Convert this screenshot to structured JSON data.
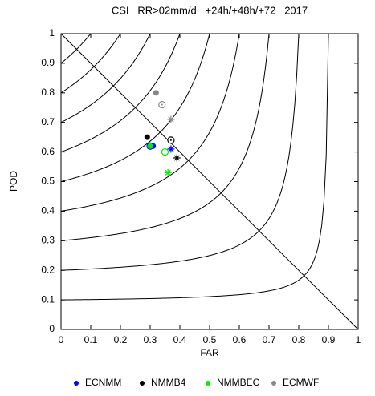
{
  "chart_data": {
    "type": "scatter",
    "title": "CSI   RR>02mm/d   +24h/+48h/+72   2017",
    "x_label": "FAR",
    "y_label": "POD",
    "xlim": [
      0,
      1
    ],
    "ylim": [
      0,
      1
    ],
    "xticks": [
      0,
      0.1,
      0.2,
      0.3,
      0.4,
      0.5,
      0.6,
      0.7,
      0.8,
      0.9,
      1
    ],
    "yticks": [
      0,
      0.1,
      0.2,
      0.3,
      0.4,
      0.5,
      0.6,
      0.7,
      0.8,
      0.9,
      1
    ],
    "csi_levels": [
      0.1,
      0.2,
      0.3,
      0.4,
      0.5,
      0.6,
      0.7,
      0.8,
      0.9
    ],
    "markers": [
      "filled-circle",
      "open-circle",
      "asterisk"
    ],
    "legend": "bottom",
    "series": [
      {
        "name": "ECNMM",
        "color": "#0000ff",
        "x": [
          0.31,
          0.3,
          0.37
        ],
        "values": [
          0.62,
          0.62,
          0.61
        ]
      },
      {
        "name": "NMMB4",
        "color": "#000000",
        "x": [
          0.29,
          0.37,
          0.39
        ],
        "values": [
          0.65,
          0.64,
          0.58
        ]
      },
      {
        "name": "NMMBEC",
        "color": "#00ee00",
        "x": [
          0.3,
          0.35,
          0.36
        ],
        "values": [
          0.62,
          0.6,
          0.53
        ]
      },
      {
        "name": "ECMWF",
        "color": "#888888",
        "x": [
          0.32,
          0.34,
          0.37
        ],
        "values": [
          0.8,
          0.76,
          0.71
        ]
      }
    ]
  }
}
